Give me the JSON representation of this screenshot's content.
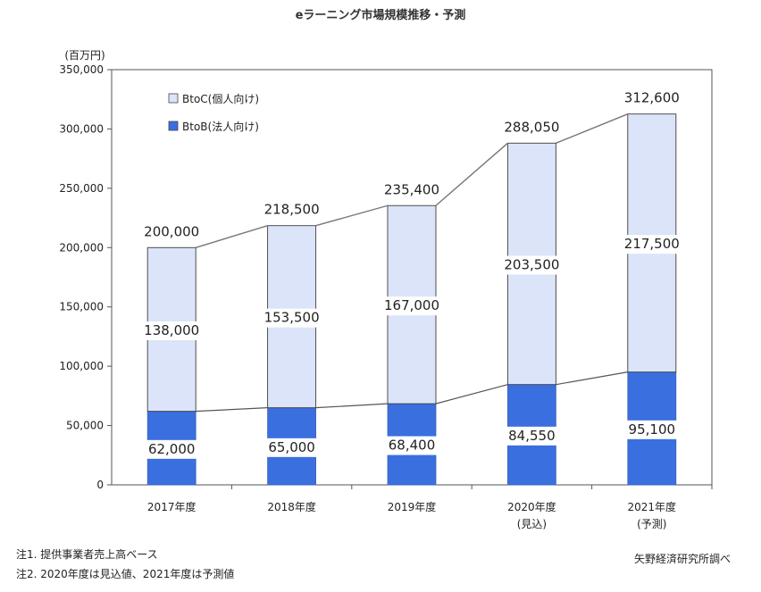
{
  "chart_data": {
    "type": "bar",
    "stacked": true,
    "title": "eラーニング市場規模推移・予測",
    "unit": "(百万円)",
    "categories": [
      {
        "year": "2017年度",
        "sub": ""
      },
      {
        "year": "2018年度",
        "sub": ""
      },
      {
        "year": "2019年度",
        "sub": ""
      },
      {
        "year": "2020年度",
        "sub": "(見込)"
      },
      {
        "year": "2021年度",
        "sub": "(予測)"
      }
    ],
    "series": [
      {
        "name": "BtoB(法人向け)",
        "color": "#3a6fe0",
        "values": [
          62000,
          65000,
          68400,
          84550,
          95100
        ]
      },
      {
        "name": "BtoC(個人向け)",
        "color": "#dbe4f8",
        "values": [
          138000,
          153500,
          167000,
          203500,
          217500
        ]
      }
    ],
    "totals": [
      200000,
      218500,
      235400,
      288050,
      312600
    ],
    "ylim": [
      0,
      350000
    ],
    "yticks": [
      0,
      50000,
      100000,
      150000,
      200000,
      250000,
      300000,
      350000
    ],
    "grid": false,
    "legend_position": "top-left",
    "show_total_line": true,
    "show_btob_line": true
  },
  "notes": {
    "note1": "注1. 提供事業者売上高ベース",
    "note2": "注2. 2020年度は見込値、2021年度は予測値",
    "source": "矢野経済研究所調べ"
  }
}
